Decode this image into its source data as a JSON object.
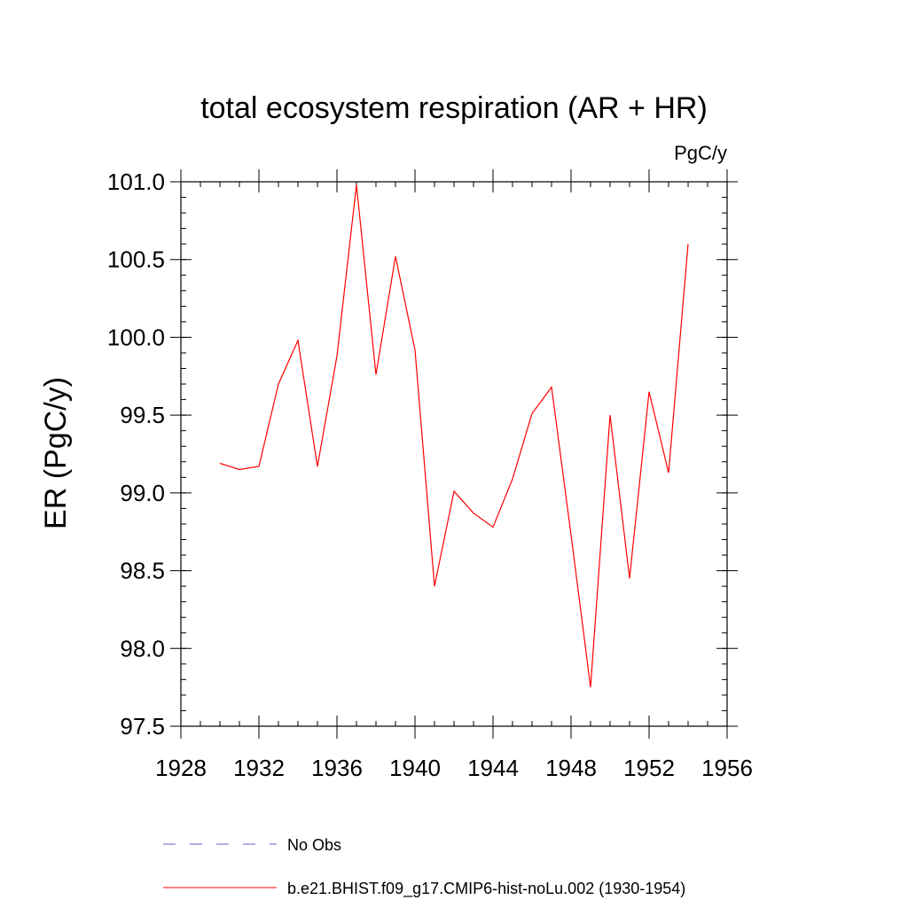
{
  "chart_data": {
    "type": "line",
    "title": "total ecosystem respiration (AR + HR)",
    "units": "PgC/y",
    "xlabel": "",
    "ylabel": "ER  (PgC/y)",
    "xlim": [
      1928,
      1956
    ],
    "ylim": [
      97.5,
      101.0
    ],
    "xticks": [
      "1928",
      "1932",
      "1936",
      "1940",
      "1944",
      "1948",
      "1952",
      "1956"
    ],
    "yticks": [
      "97.5",
      "98.0",
      "98.5",
      "99.0",
      "99.5",
      "100.0",
      "100.5",
      "101.0"
    ],
    "grid": false,
    "legend_position": "bottom",
    "series": [
      {
        "name": "b.e21.BHIST.f09_g17.CMIP6-hist-noLu.002 (1930-1954)",
        "color": "#ff0000",
        "style": "solid",
        "x": [
          1930,
          1931,
          1932,
          1933,
          1934,
          1935,
          1936,
          1937,
          1938,
          1939,
          1940,
          1941,
          1942,
          1943,
          1944,
          1945,
          1946,
          1947,
          1948,
          1949,
          1950,
          1951,
          1952,
          1953,
          1954
        ],
        "y": [
          99.19,
          99.15,
          99.17,
          99.7,
          99.98,
          99.17,
          99.88,
          100.98,
          99.76,
          100.52,
          99.92,
          98.4,
          99.01,
          98.87,
          98.78,
          99.09,
          99.51,
          99.68,
          98.73,
          97.75,
          99.5,
          98.45,
          99.65,
          99.13,
          100.6
        ]
      }
    ],
    "legend": [
      {
        "label": "No Obs",
        "color": "#6a5acd",
        "style": "dashed"
      },
      {
        "label": "b.e21.BHIST.f09_g17.CMIP6-hist-noLu.002 (1930-1954)",
        "color": "#ff0000",
        "style": "solid"
      }
    ]
  }
}
